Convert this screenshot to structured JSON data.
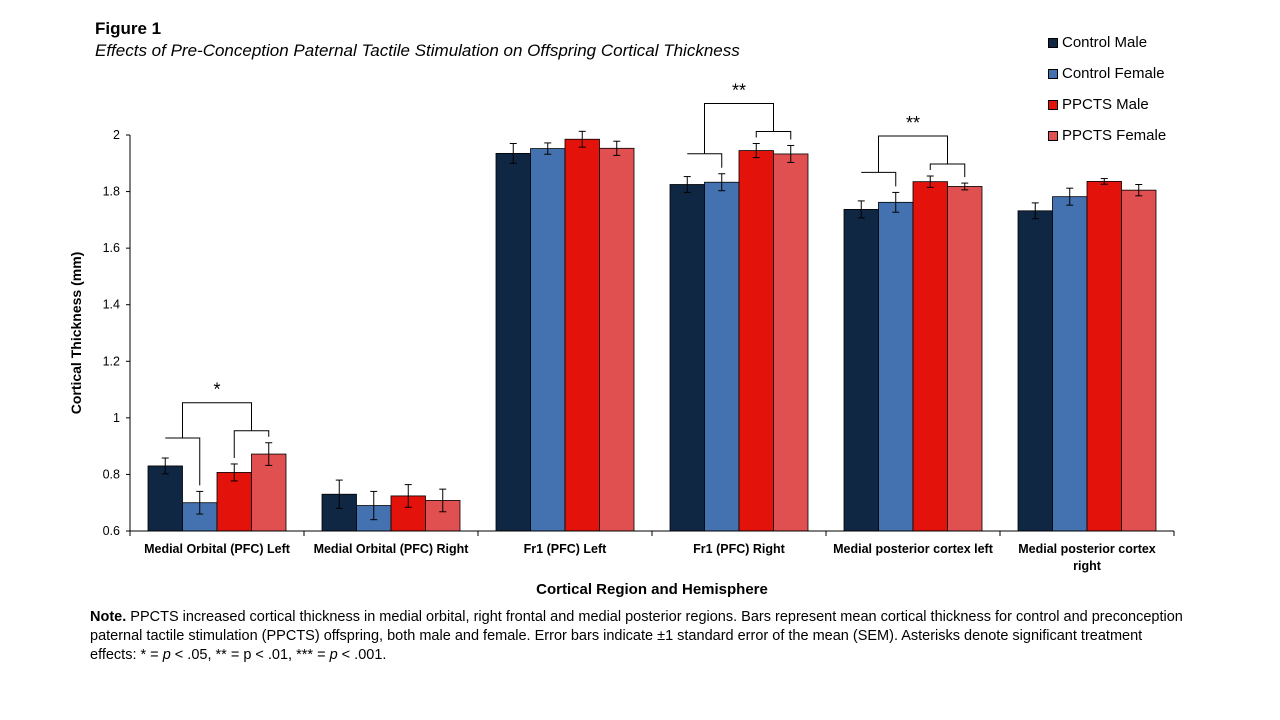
{
  "figure": {
    "label": "Figure 1",
    "title": "Effects of Pre-Conception Paternal Tactile Stimulation on Offspring Cortical Thickness"
  },
  "note": {
    "label": "Note.",
    "text_parts": [
      " PPCTS increased cortical thickness in medial orbital, right frontal and medial posterior regions. Bars represent mean cortical thickness for control and preconception paternal tactile stimulation (PPCTS) offspring, both male and female. Error bars indicate ±1 standard error of the mean (SEM). Asterisks denote significant treatment effects: * = ",
      "p",
      " < .05, ** = p < .01, *** = ",
      "p",
      " < .001."
    ]
  },
  "chart_data": {
    "type": "bar",
    "xlabel": "Cortical Region and Hemisphere",
    "ylabel": "Cortical Thickness (mm)",
    "ylim": [
      0.6,
      2.0
    ],
    "yticks": [
      "0.6",
      "0.8",
      "1",
      "1.2",
      "1.4",
      "1.6",
      "1.8",
      "2"
    ],
    "ytick_values": [
      0.6,
      0.8,
      1.0,
      1.2,
      1.4,
      1.6,
      1.8,
      2.0
    ],
    "grid": false,
    "legend_position": "top-right",
    "categories": [
      [
        "Medial Orbital (PFC) Left"
      ],
      [
        "Medial Orbital (PFC) Right"
      ],
      [
        "Fr1 (PFC) Left"
      ],
      [
        "Fr1 (PFC) Right"
      ],
      [
        "Medial posterior cortex left"
      ],
      [
        "Medial posterior cortex",
        "right"
      ]
    ],
    "series": [
      {
        "name": "Control Male",
        "color": "#0f2742",
        "values": [
          0.83,
          0.73,
          1.935,
          1.825,
          1.737,
          1.732
        ],
        "errors": [
          0.028,
          0.05,
          0.035,
          0.028,
          0.03,
          0.028
        ]
      },
      {
        "name": "Control Female",
        "color": "#4472b0",
        "values": [
          0.7,
          0.69,
          1.952,
          1.833,
          1.762,
          1.782
        ],
        "errors": [
          0.04,
          0.05,
          0.02,
          0.03,
          0.035,
          0.03
        ]
      },
      {
        "name": "PPCTS Male",
        "color": "#e3130b",
        "values": [
          0.807,
          0.724,
          1.985,
          1.945,
          1.835,
          1.836
        ],
        "errors": [
          0.03,
          0.04,
          0.028,
          0.025,
          0.02,
          0.01
        ]
      },
      {
        "name": "PPCTS Female",
        "color": "#e05050",
        "values": [
          0.872,
          0.708,
          1.953,
          1.933,
          1.818,
          1.805
        ],
        "errors": [
          0.04,
          0.04,
          0.025,
          0.03,
          0.012,
          0.02
        ]
      }
    ],
    "annotations": [
      {
        "category": 0,
        "label": "*"
      },
      {
        "category": 3,
        "label": "**"
      },
      {
        "category": 4,
        "label": "**"
      }
    ]
  }
}
